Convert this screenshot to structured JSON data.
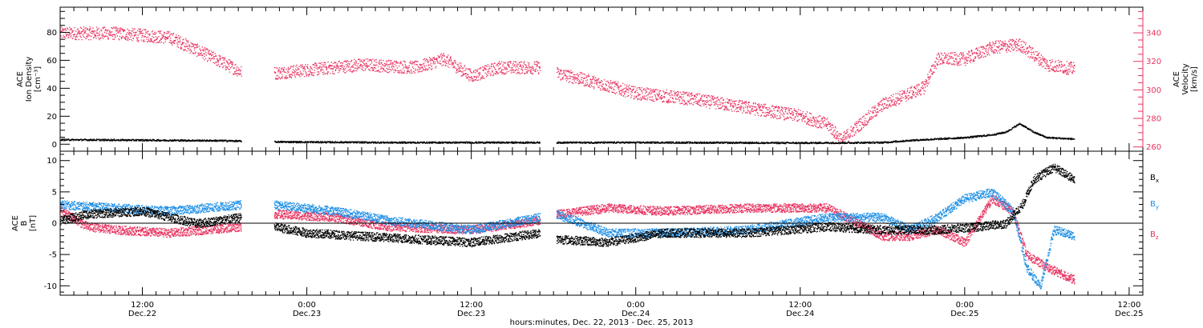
{
  "colors": {
    "black": "#000000",
    "pink": "#e8325f",
    "blue": "#1e8fe6"
  },
  "xaxis": {
    "title": "hours:minutes, Dec. 22, 2013 - Dec. 25, 2013",
    "range_hours": [
      6,
      85
    ],
    "ticks": [
      {
        "hour": 12,
        "time": "12:00",
        "date": "Dec.22"
      },
      {
        "hour": 24,
        "time": "0:00",
        "date": "Dec.23"
      },
      {
        "hour": 36,
        "time": "12:00",
        "date": "Dec.23"
      },
      {
        "hour": 48,
        "time": "0:00",
        "date": "Dec.24"
      },
      {
        "hour": 60,
        "time": "12:00",
        "date": "Dec.24"
      },
      {
        "hour": 72,
        "time": "0:00",
        "date": "Dec.25"
      },
      {
        "hour": 84,
        "time": "12:00",
        "date": "Dec.25"
      }
    ]
  },
  "chart_data": [
    {
      "type": "scatter",
      "panel": "top",
      "ylabel_left": [
        "ACE",
        "Ion Density",
        "[cm⁻³]"
      ],
      "ylabel_right": [
        "ACE",
        "Velocity",
        "[km/s]"
      ],
      "ylim_left": [
        -5,
        98
      ],
      "ylim_right": [
        257,
        358
      ],
      "yticks_left": [
        0,
        20,
        40,
        60,
        80
      ],
      "yticks_right": [
        260,
        280,
        300,
        320,
        340
      ],
      "gaps_hours": [
        [
          19.2,
          21.6
        ],
        [
          41.0,
          42.2
        ]
      ],
      "data_end_hour": 80.0,
      "series": [
        {
          "name": "Ion Density",
          "axis": "left",
          "color": "black",
          "hours": [
            6,
            12,
            18,
            19.2,
            21.6,
            30,
            36,
            41,
            42.2,
            50,
            60,
            66,
            68,
            72,
            74,
            75,
            76,
            77,
            78,
            80
          ],
          "values": [
            3.5,
            3.2,
            2.8,
            2.5,
            2.0,
            1.5,
            1.5,
            1.5,
            1.5,
            1.5,
            1.2,
            1.5,
            3,
            5,
            7,
            9,
            15,
            9,
            5,
            4
          ]
        },
        {
          "name": "Velocity",
          "axis": "right",
          "color": "pink",
          "hours": [
            6,
            10,
            14,
            16,
            19.2,
            21.6,
            28,
            32,
            34,
            36,
            38,
            41,
            42.2,
            44,
            48,
            52,
            56,
            60,
            62,
            63,
            66,
            68,
            69,
            70,
            72,
            74,
            76,
            78,
            80
          ],
          "values": [
            340,
            340,
            337,
            328,
            313,
            312,
            318,
            316,
            322,
            310,
            316,
            316,
            312,
            308,
            298,
            294,
            288,
            282,
            276,
            265,
            290,
            298,
            302,
            322,
            322,
            330,
            332,
            318,
            315
          ]
        }
      ]
    },
    {
      "type": "scatter",
      "panel": "bottom",
      "ylabel_left": [
        "ACE",
        "B",
        "[nT]"
      ],
      "ylim": [
        -11.5,
        11.5
      ],
      "yticks": [
        -10,
        -5,
        0,
        5,
        10
      ],
      "gaps_hours": [
        [
          19.2,
          21.6
        ],
        [
          41.0,
          42.2
        ]
      ],
      "data_end_hour": 80.0,
      "series": [
        {
          "name": "Bx",
          "label_main": "B",
          "label_sub": "x",
          "color": "black",
          "hours": [
            6,
            8,
            12,
            16,
            19.2,
            21.6,
            24,
            28,
            32,
            36,
            41,
            42.2,
            46,
            50,
            56,
            62,
            66,
            70,
            73,
            75,
            76.2,
            77,
            78.5,
            80
          ],
          "values": [
            0.5,
            1.5,
            2,
            0,
            1,
            -0.5,
            -1.5,
            -2,
            -2.5,
            -3,
            -1.5,
            -2.5,
            -3,
            -1.5,
            -1.5,
            -0.5,
            -1,
            -1,
            -0.5,
            0,
            3,
            7,
            9,
            7
          ]
        },
        {
          "name": "By",
          "label_main": "B",
          "label_sub": "y",
          "color": "blue",
          "hours": [
            6,
            10,
            14,
            19.2,
            21.6,
            26,
            30,
            36,
            41,
            42.2,
            46,
            50,
            56,
            62,
            66,
            68,
            70,
            72,
            74,
            75.5,
            76.5,
            77.5,
            78.5,
            80
          ],
          "values": [
            3,
            2.5,
            2,
            3,
            3,
            2,
            0.5,
            -1,
            1,
            1.5,
            -1.5,
            -1.5,
            -1,
            1,
            1,
            -1,
            1,
            4,
            5,
            2,
            -7,
            -10,
            -1,
            -2
          ]
        },
        {
          "name": "Bz",
          "label_main": "B",
          "label_sub": "z",
          "color": "pink",
          "hours": [
            6,
            8,
            10,
            14,
            19.2,
            21.6,
            26,
            30,
            36,
            41,
            42.2,
            46,
            50,
            56,
            62,
            66,
            68,
            70,
            72,
            74,
            75.5,
            76.5,
            78,
            80
          ],
          "values": [
            2,
            -0.5,
            -1,
            -1.5,
            -0.5,
            1.5,
            1,
            -0.5,
            -1,
            0.5,
            1.5,
            2.5,
            2,
            2.5,
            2.5,
            -2,
            -2,
            -1,
            -3,
            4,
            2,
            -5,
            -7,
            -9
          ]
        }
      ]
    }
  ]
}
